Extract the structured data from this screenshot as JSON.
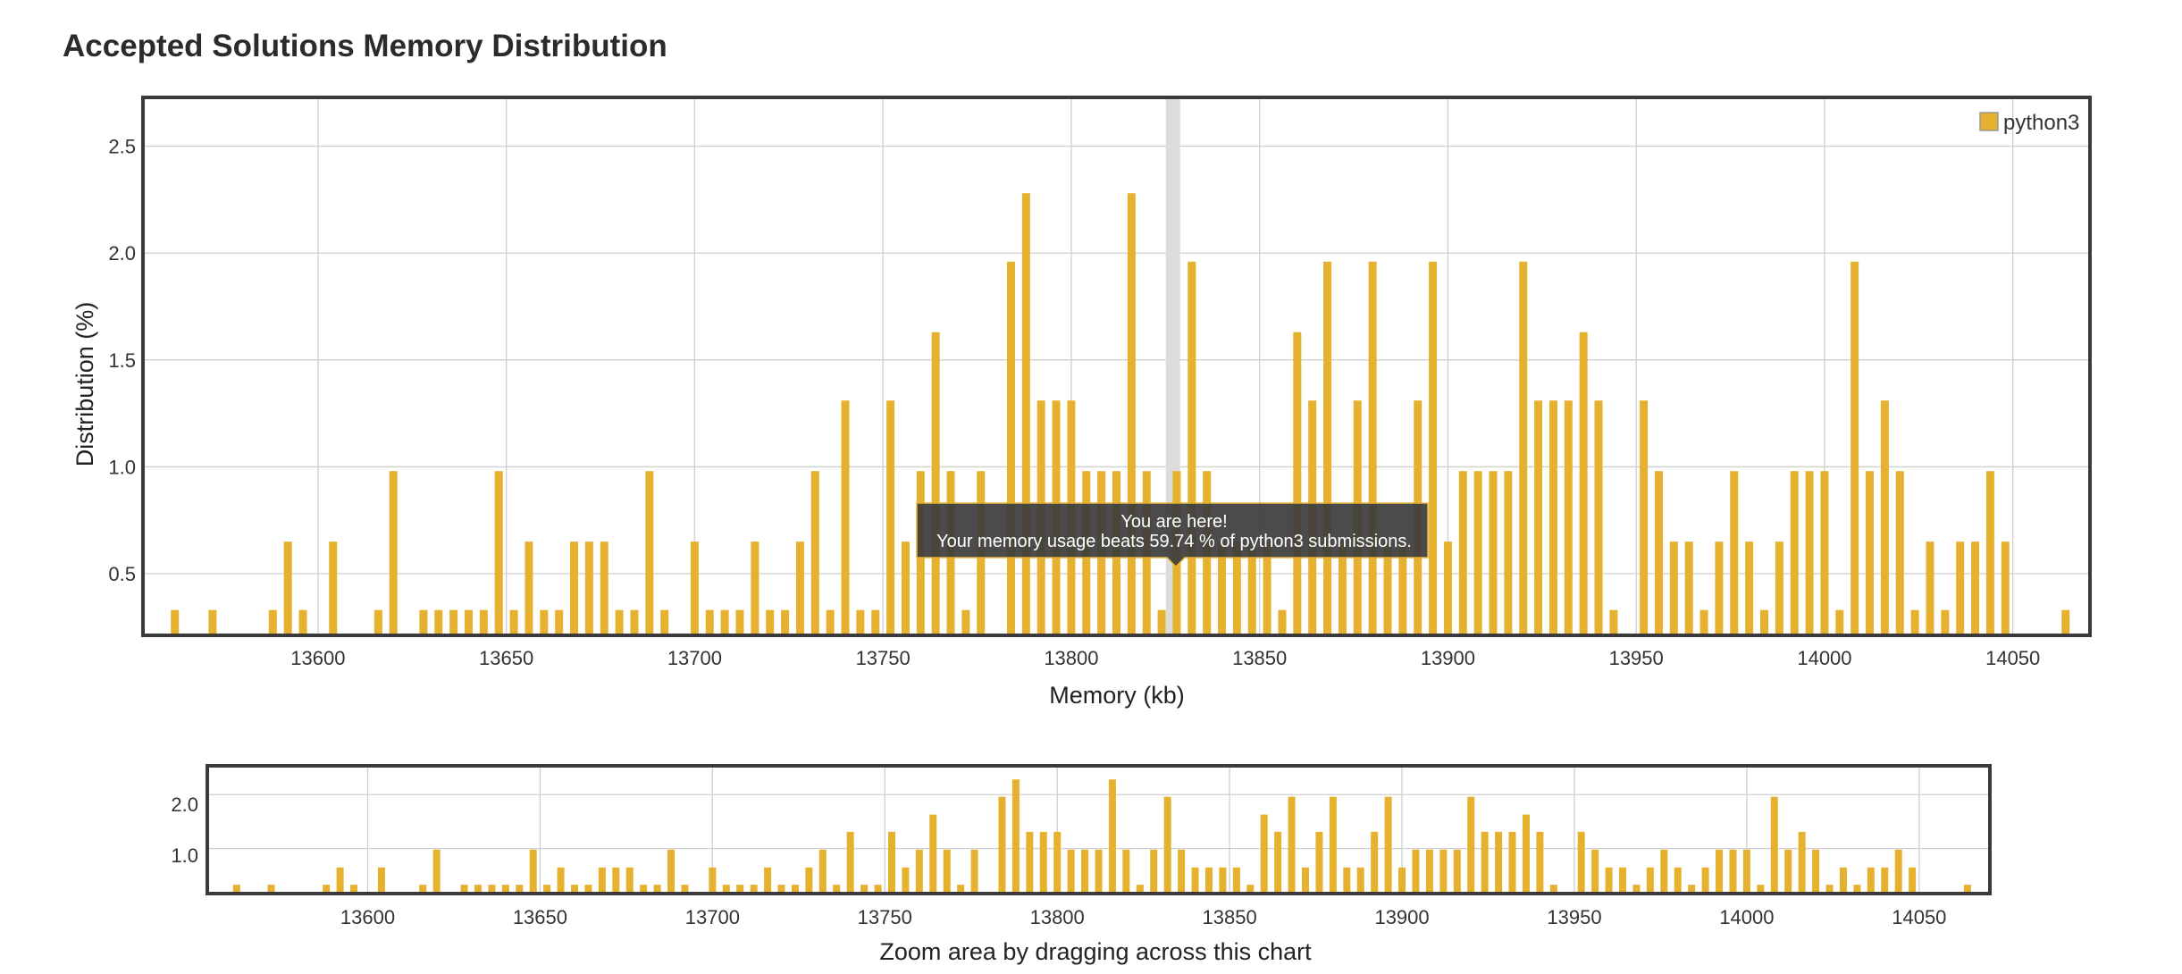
{
  "page": {
    "title": "Accepted Solutions Memory Distribution"
  },
  "colors": {
    "bar": "#E5B12F",
    "highlight_band": "#dcdcdc",
    "tooltip_bg": "#3c3c3c"
  },
  "chart_data": [
    {
      "type": "bar",
      "title": "Accepted Solutions Memory Distribution",
      "xlabel": "Memory (kb)",
      "ylabel": "Distribution (%)",
      "xlim": [
        13554,
        14070
      ],
      "ylim": [
        0.22,
        2.72
      ],
      "x_ticks": [
        13600,
        13650,
        13700,
        13750,
        13800,
        13850,
        13900,
        13950,
        14000,
        14050
      ],
      "y_ticks": [
        0.5,
        1.0,
        1.5,
        2.0,
        2.5
      ],
      "grid": true,
      "legend_position": "top-right",
      "series": [
        {
          "name": "python3",
          "x": [
            13562,
            13572,
            13588,
            13592,
            13596,
            13604,
            13616,
            13620,
            13628,
            13632,
            13636,
            13640,
            13644,
            13648,
            13652,
            13656,
            13660,
            13664,
            13668,
            13672,
            13676,
            13680,
            13684,
            13688,
            13692,
            13700,
            13704,
            13708,
            13712,
            13716,
            13720,
            13724,
            13728,
            13732,
            13736,
            13740,
            13744,
            13748,
            13752,
            13756,
            13760,
            13764,
            13768,
            13772,
            13776,
            13784,
            13788,
            13792,
            13796,
            13800,
            13804,
            13808,
            13812,
            13816,
            13820,
            13824,
            13828,
            13832,
            13836,
            13840,
            13844,
            13848,
            13852,
            13856,
            13860,
            13864,
            13868,
            13872,
            13876,
            13880,
            13884,
            13888,
            13892,
            13896,
            13900,
            13904,
            13908,
            13912,
            13916,
            13920,
            13924,
            13928,
            13932,
            13936,
            13940,
            13944,
            13952,
            13956,
            13960,
            13964,
            13968,
            13972,
            13976,
            13980,
            13984,
            13988,
            13992,
            13996,
            14000,
            14004,
            14008,
            14012,
            14016,
            14020,
            14024,
            14028,
            14032,
            14036,
            14040,
            14044,
            14048,
            14064
          ],
          "y": [
            0.33,
            0.33,
            0.33,
            0.65,
            0.33,
            0.65,
            0.33,
            0.98,
            0.33,
            0.33,
            0.33,
            0.33,
            0.33,
            0.98,
            0.33,
            0.65,
            0.33,
            0.33,
            0.65,
            0.65,
            0.65,
            0.33,
            0.33,
            0.98,
            0.33,
            0.65,
            0.33,
            0.33,
            0.33,
            0.65,
            0.33,
            0.33,
            0.65,
            0.98,
            0.33,
            1.31,
            0.33,
            0.33,
            1.31,
            0.65,
            0.98,
            1.63,
            0.98,
            0.33,
            0.98,
            1.96,
            2.28,
            1.31,
            1.31,
            1.31,
            0.98,
            0.98,
            0.98,
            2.28,
            0.98,
            0.33,
            0.98,
            1.96,
            0.98,
            0.65,
            0.65,
            0.65,
            0.65,
            0.33,
            1.63,
            1.31,
            1.96,
            0.65,
            1.31,
            1.96,
            0.65,
            0.65,
            1.31,
            1.96,
            0.65,
            0.98,
            0.98,
            0.98,
            0.98,
            1.96,
            1.31,
            1.31,
            1.31,
            1.63,
            1.31,
            0.33,
            1.31,
            0.98,
            0.65,
            0.65,
            0.33,
            0.65,
            0.98,
            0.65,
            0.33,
            0.65,
            0.98,
            0.98,
            0.98,
            0.33,
            1.96,
            0.98,
            1.31,
            0.98,
            0.33,
            0.65,
            0.33,
            0.65,
            0.65,
            0.98,
            0.65,
            0.33
          ]
        }
      ],
      "highlight_x": 13827,
      "tooltip": {
        "line1": "You are here!",
        "line2": "Your memory usage beats 59.74 % of python3 submissions."
      }
    },
    {
      "type": "bar",
      "role": "navigator",
      "xlabel": "Zoom area by dragging across this chart",
      "y_ticks_labels": [
        "1.0",
        "2.0"
      ]
    }
  ]
}
